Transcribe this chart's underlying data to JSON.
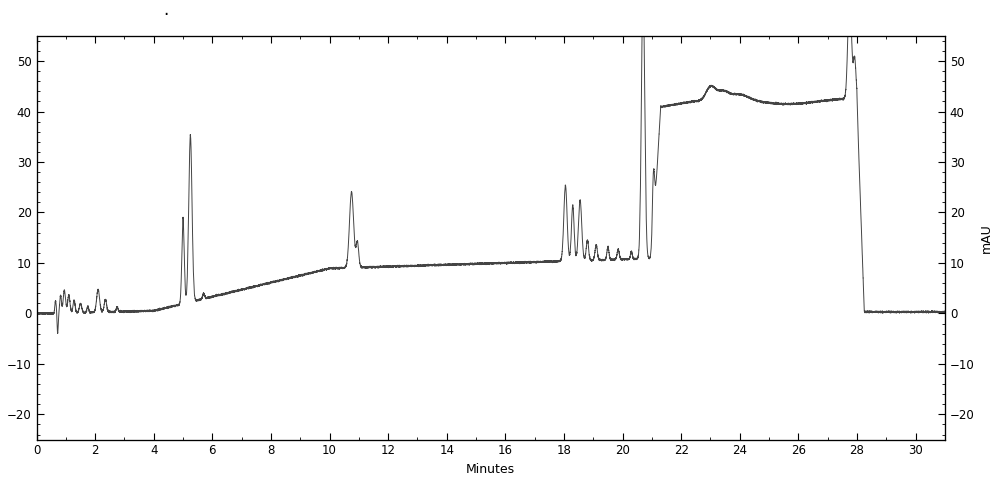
{
  "title": "",
  "xlabel": "Minutes",
  "ylabel_left": "",
  "ylabel_right": "mAU",
  "xlim": [
    0,
    31
  ],
  "ylim": [
    -25,
    55
  ],
  "yticks_left": [
    -20,
    -10,
    0,
    10,
    20,
    30,
    40,
    50
  ],
  "yticks_right": [
    -20,
    -10,
    0,
    10,
    20,
    30,
    40,
    50
  ],
  "xticks": [
    0,
    2,
    4,
    6,
    8,
    10,
    12,
    14,
    16,
    18,
    20,
    22,
    24,
    26,
    28,
    30
  ],
  "line_color": "#444444",
  "background_color": "#ffffff",
  "figsize": [
    10.0,
    4.83
  ],
  "dpi": 100
}
